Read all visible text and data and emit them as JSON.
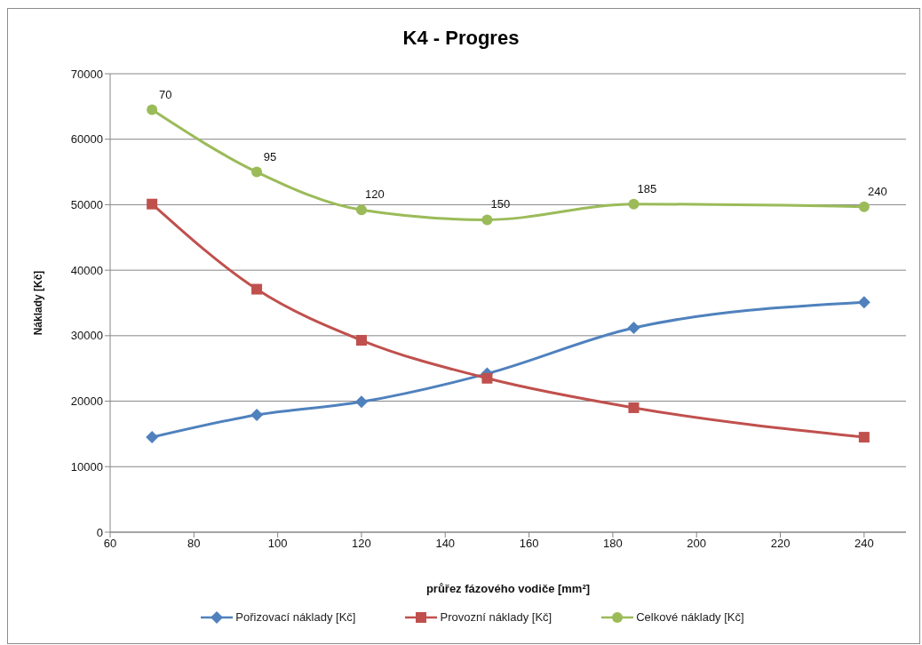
{
  "chart_data": {
    "type": "line",
    "title": "K4 - Progres",
    "xlabel": "průřez fázového vodiče [mm²]",
    "ylabel": "Náklady [Kč]",
    "x": [
      70,
      95,
      120,
      150,
      185,
      240
    ],
    "xlim": [
      60,
      250
    ],
    "xticks": [
      60,
      80,
      100,
      120,
      140,
      160,
      180,
      200,
      220,
      240
    ],
    "ylim": [
      0,
      70000
    ],
    "yticks": [
      0,
      10000,
      20000,
      30000,
      40000,
      50000,
      60000,
      70000
    ],
    "grid": "y",
    "legend": "bottom",
    "line_style": "solid",
    "series": [
      {
        "name": "Pořizovací náklady [Kč]",
        "color": "#4f81bd",
        "marker": "diamond",
        "values": [
          14500,
          17900,
          19900,
          24200,
          31200,
          35100
        ]
      },
      {
        "name": "Provozní náklady [Kč]",
        "color": "#c0504d",
        "marker": "square",
        "values": [
          50100,
          37100,
          29300,
          23500,
          19000,
          14500
        ]
      },
      {
        "name": "Celkové náklady [Kč]",
        "color": "#9bbb59",
        "marker": "circle",
        "values": [
          64500,
          55000,
          49200,
          47700,
          50100,
          49700
        ]
      }
    ],
    "annotations": [
      {
        "text": "70",
        "x": 70,
        "y": 64500
      },
      {
        "text": "95",
        "x": 95,
        "y": 55000
      },
      {
        "text": "120",
        "x": 120,
        "y": 49200
      },
      {
        "text": "150",
        "x": 150,
        "y": 47700
      },
      {
        "text": "185",
        "x": 185,
        "y": 50100
      },
      {
        "text": "240",
        "x": 240,
        "y": 49700
      }
    ]
  }
}
